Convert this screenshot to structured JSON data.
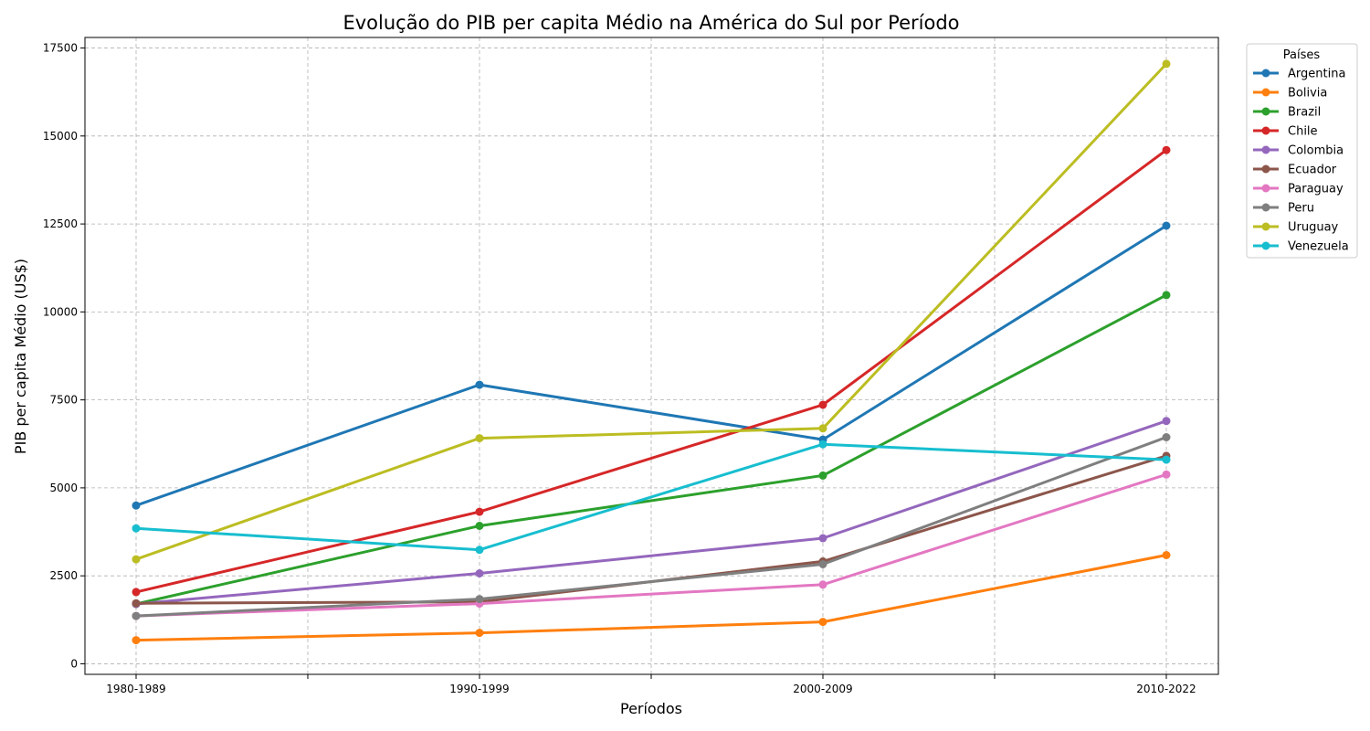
{
  "chart_data": {
    "type": "line",
    "title": "Evolução do PIB per capita Médio na América do Sul por Período",
    "xlabel": "Períodos",
    "ylabel": "PIB per capita Médio (US$)",
    "categories": [
      "1980-1989",
      "1990-1999",
      "2000-2009",
      "2010-2022"
    ],
    "ylim": [
      -300,
      17800
    ],
    "yticks": [
      0,
      2500,
      5000,
      7500,
      10000,
      12500,
      15000,
      17500
    ],
    "grid": true,
    "legend": {
      "title": "Países",
      "position": "top-right outside"
    },
    "series": [
      {
        "name": "Argentina",
        "color": "#1f77b4",
        "values": [
          4500,
          7930,
          6370,
          12450
        ]
      },
      {
        "name": "Bolivia",
        "color": "#ff7f0e",
        "values": [
          670,
          880,
          1190,
          3090
        ]
      },
      {
        "name": "Brazil",
        "color": "#2ca02c",
        "values": [
          1700,
          3920,
          5350,
          10480
        ]
      },
      {
        "name": "Chile",
        "color": "#d62728",
        "values": [
          2040,
          4320,
          7360,
          14600
        ]
      },
      {
        "name": "Colombia",
        "color": "#9467bd",
        "values": [
          1700,
          2570,
          3570,
          6900
        ]
      },
      {
        "name": "Ecuador",
        "color": "#8c564b",
        "values": [
          1720,
          1760,
          2910,
          5910
        ]
      },
      {
        "name": "Paraguay",
        "color": "#e377c2",
        "values": [
          1360,
          1710,
          2250,
          5380
        ]
      },
      {
        "name": "Peru",
        "color": "#7f7f7f",
        "values": [
          1360,
          1840,
          2830,
          6440
        ]
      },
      {
        "name": "Uruguay",
        "color": "#bcbd22",
        "values": [
          2970,
          6410,
          6690,
          17050
        ]
      },
      {
        "name": "Venezuela",
        "color": "#17becf",
        "values": [
          3850,
          3240,
          6240,
          5800
        ]
      }
    ]
  }
}
